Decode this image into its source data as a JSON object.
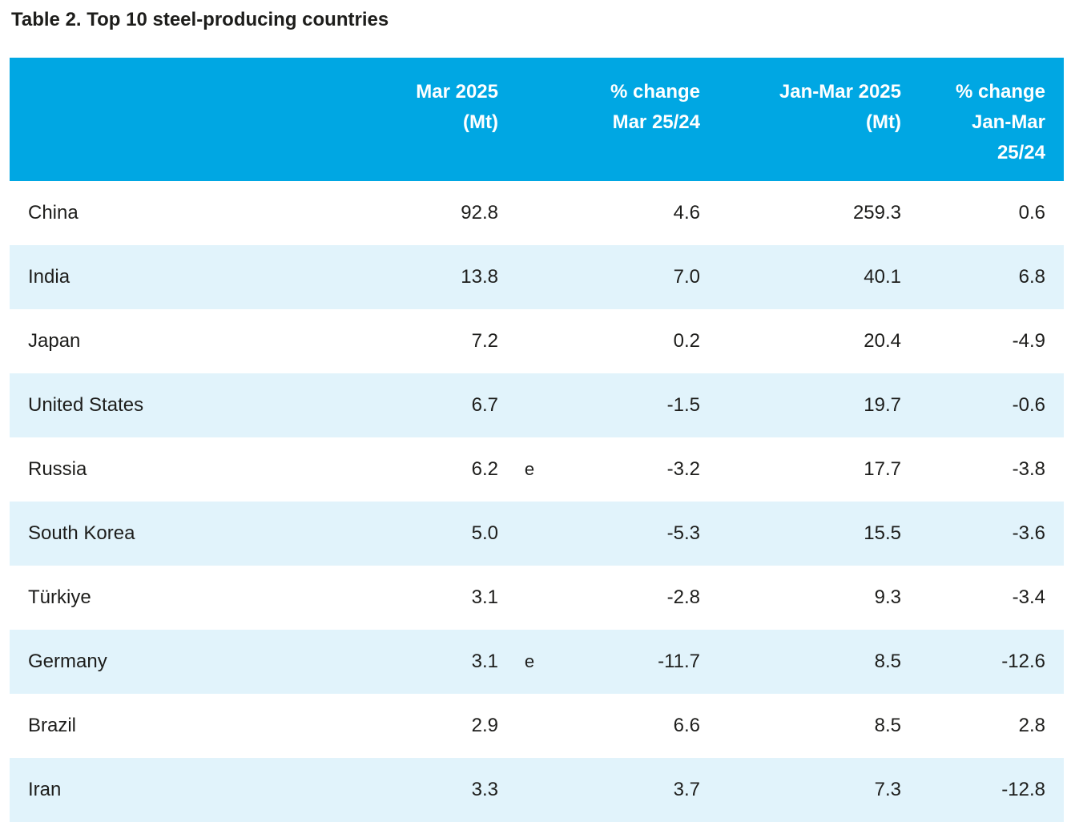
{
  "title": "Table 2. Top 10 steel-producing countries",
  "accent_colors": {
    "header_background": "#00a7e3",
    "header_text": "#ffffff",
    "stripe_row_background": "#e1f3fb",
    "body_text": "#1d1d1b"
  },
  "table": {
    "note_symbol_meaning": "estimate-flag",
    "headers": {
      "country": "",
      "mar": {
        "l1": "Mar 2025",
        "l2": "(Mt)"
      },
      "pct_mar": {
        "l1": "% change",
        "l2": "Mar 25/24"
      },
      "janmar": {
        "l1": "Jan-Mar 2025",
        "l2": "(Mt)"
      },
      "pct_janmar": {
        "l1": "% change",
        "l2": "Jan-Mar",
        "l3": "25/24"
      }
    },
    "rows": [
      {
        "country": "China",
        "mar": "92.8",
        "note": "",
        "pct_mar": "4.6",
        "janmar": "259.3",
        "pct_janmar": "0.6"
      },
      {
        "country": "India",
        "mar": "13.8",
        "note": "",
        "pct_mar": "7.0",
        "janmar": "40.1",
        "pct_janmar": "6.8"
      },
      {
        "country": "Japan",
        "mar": "7.2",
        "note": "",
        "pct_mar": "0.2",
        "janmar": "20.4",
        "pct_janmar": "-4.9"
      },
      {
        "country": "United States",
        "mar": "6.7",
        "note": "",
        "pct_mar": "-1.5",
        "janmar": "19.7",
        "pct_janmar": "-0.6"
      },
      {
        "country": "Russia",
        "mar": "6.2",
        "note": "e",
        "pct_mar": "-3.2",
        "janmar": "17.7",
        "pct_janmar": "-3.8"
      },
      {
        "country": "South Korea",
        "mar": "5.0",
        "note": "",
        "pct_mar": "-5.3",
        "janmar": "15.5",
        "pct_janmar": "-3.6"
      },
      {
        "country": "Türkiye",
        "mar": "3.1",
        "note": "",
        "pct_mar": "-2.8",
        "janmar": "9.3",
        "pct_janmar": "-3.4"
      },
      {
        "country": "Germany",
        "mar": "3.1",
        "note": "e",
        "pct_mar": "-11.7",
        "janmar": "8.5",
        "pct_janmar": "-12.6"
      },
      {
        "country": "Brazil",
        "mar": "2.9",
        "note": "",
        "pct_mar": "6.6",
        "janmar": "8.5",
        "pct_janmar": "2.8"
      },
      {
        "country": "Iran",
        "mar": "3.3",
        "note": "",
        "pct_mar": "3.7",
        "janmar": "7.3",
        "pct_janmar": "-12.8"
      }
    ]
  }
}
